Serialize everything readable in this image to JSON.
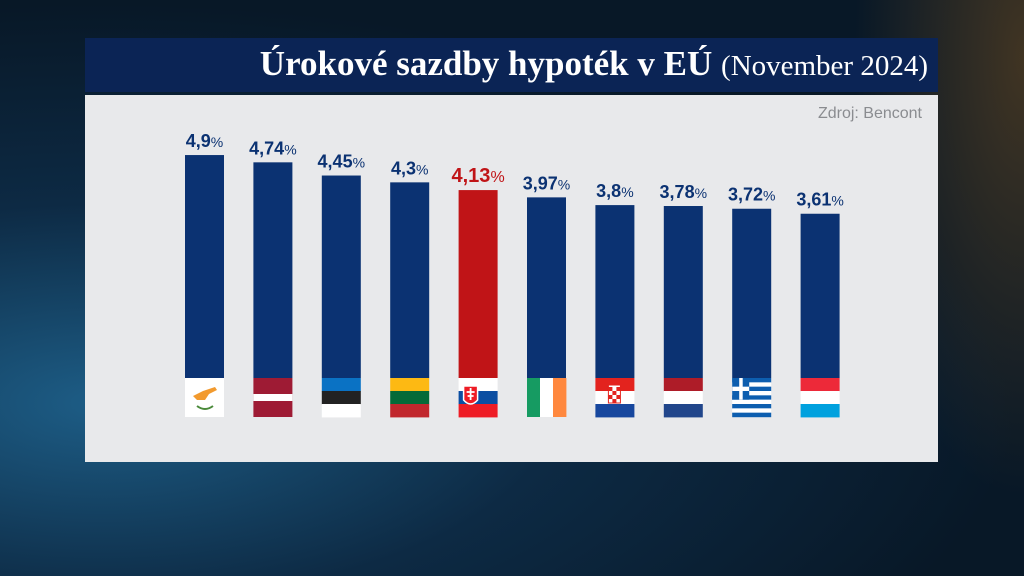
{
  "title": "Úrokové sazdby hypoték v EÚ",
  "subtitle": "(November 2024)",
  "source": "Zdroj: Bencont",
  "colors": {
    "bar": "#0b3272",
    "highlight": "#c01417",
    "label": "#0b3272",
    "highlight_label": "#c01417"
  },
  "chart_data": {
    "type": "bar",
    "title": "Úrokové sazdby hypoték v EÚ (November 2024)",
    "categories": [
      "cyprus-flag",
      "latvia-flag",
      "estonia-flag",
      "lithuania-flag",
      "slovakia-flag",
      "ireland-flag",
      "croatia-flag",
      "netherlands-flag",
      "greece-flag",
      "luxembourg-flag"
    ],
    "values": [
      4.9,
      4.74,
      4.45,
      4.3,
      4.13,
      3.97,
      3.8,
      3.78,
      3.72,
      3.61
    ],
    "labels": [
      "4,9",
      "4,74",
      "4,45",
      "4,3",
      "4,13",
      "3,97",
      "3,8",
      "3,78",
      "3,72",
      "3,61"
    ],
    "unit": "%",
    "highlight_index": 4,
    "xlabel": "",
    "ylabel": "",
    "ylim": [
      0,
      5
    ],
    "grid": false
  }
}
